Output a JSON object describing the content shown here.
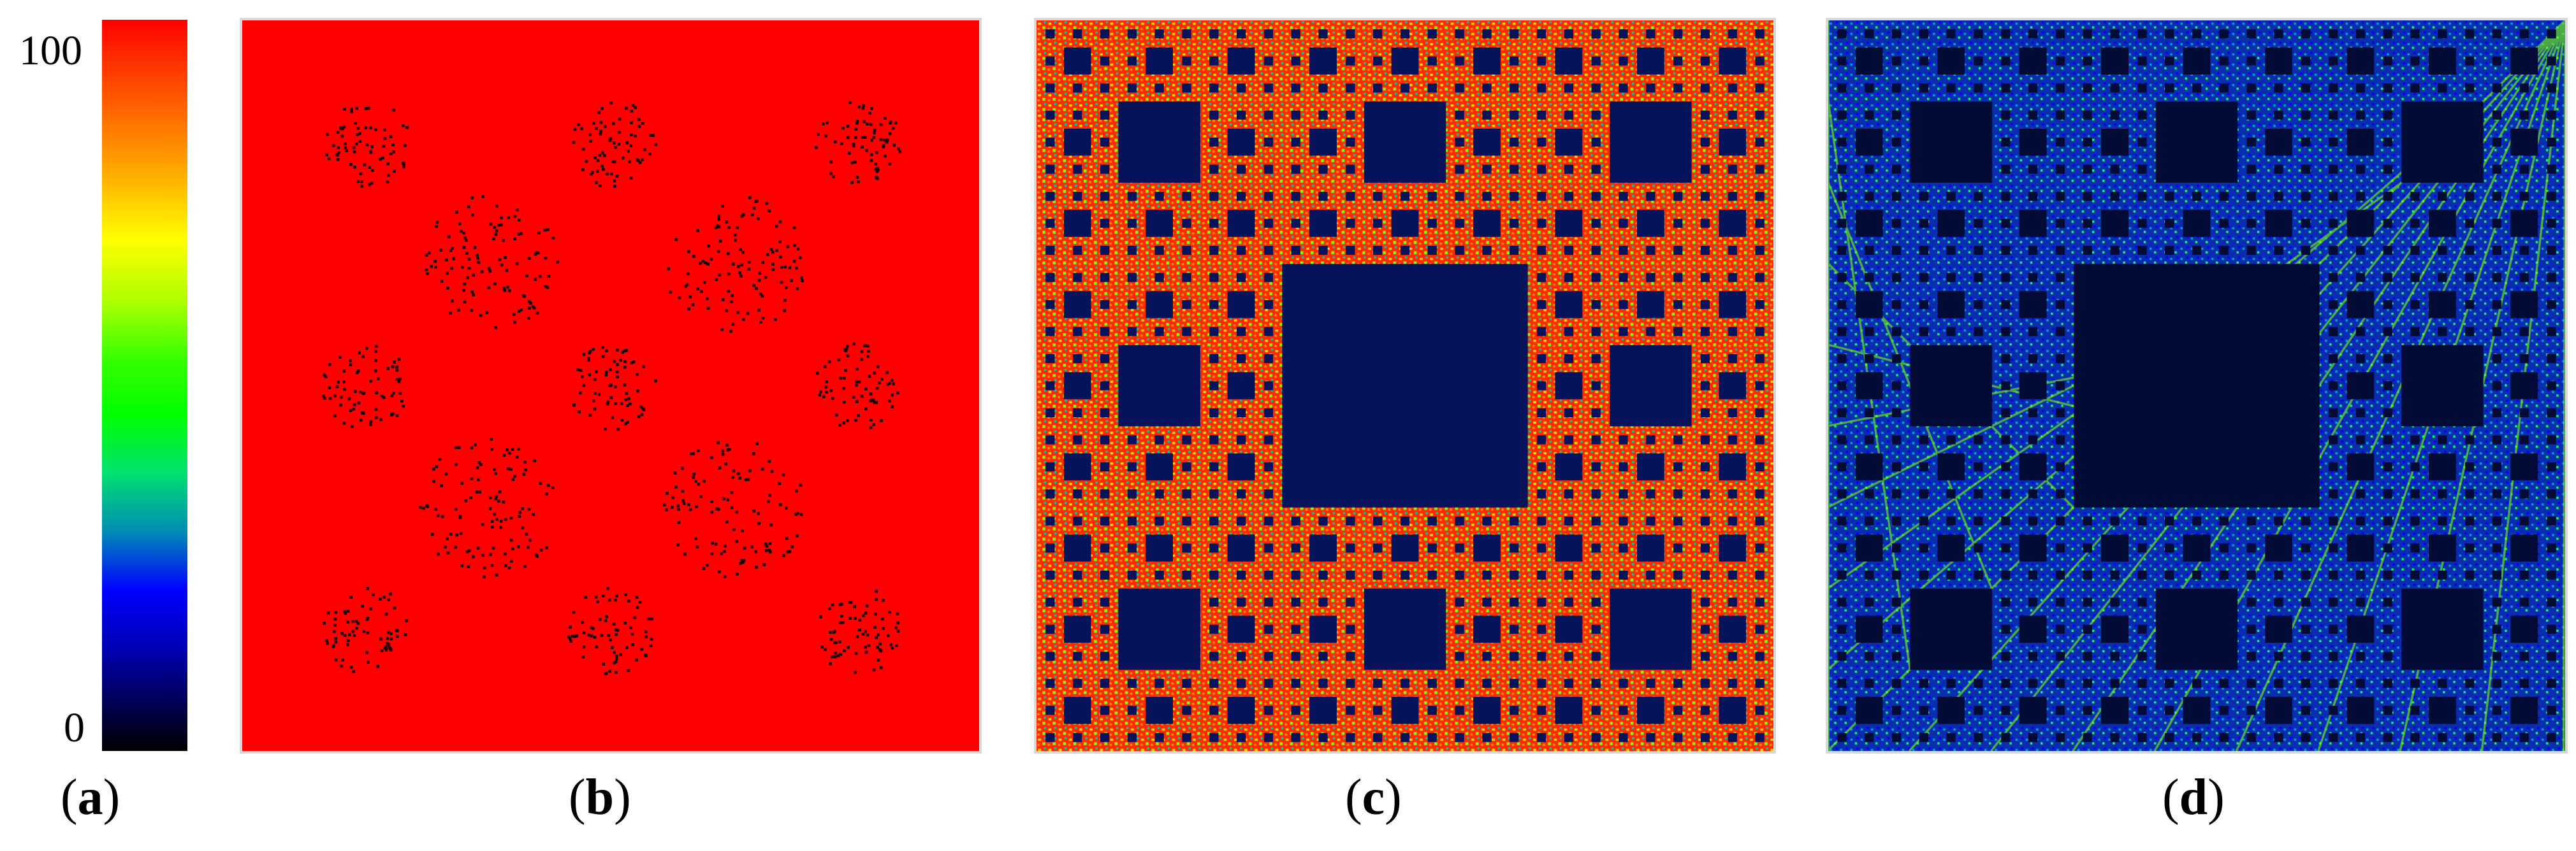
{
  "colorbar": {
    "max_label": "100",
    "min_label": "0"
  },
  "panels": [
    {
      "id": "a",
      "label": "a"
    },
    {
      "id": "b",
      "label": "b",
      "fill": "#ff0000"
    },
    {
      "id": "c",
      "label": "c",
      "fill": "#ff2a00"
    },
    {
      "id": "d",
      "label": "d",
      "fill": "#0b2fa8"
    }
  ],
  "colors": {
    "red": "#ff0000",
    "yellow_green": "#9cff00",
    "blue": "#0020b0",
    "dark_navy": "#000a3a",
    "border": "#d8d8d8"
  }
}
